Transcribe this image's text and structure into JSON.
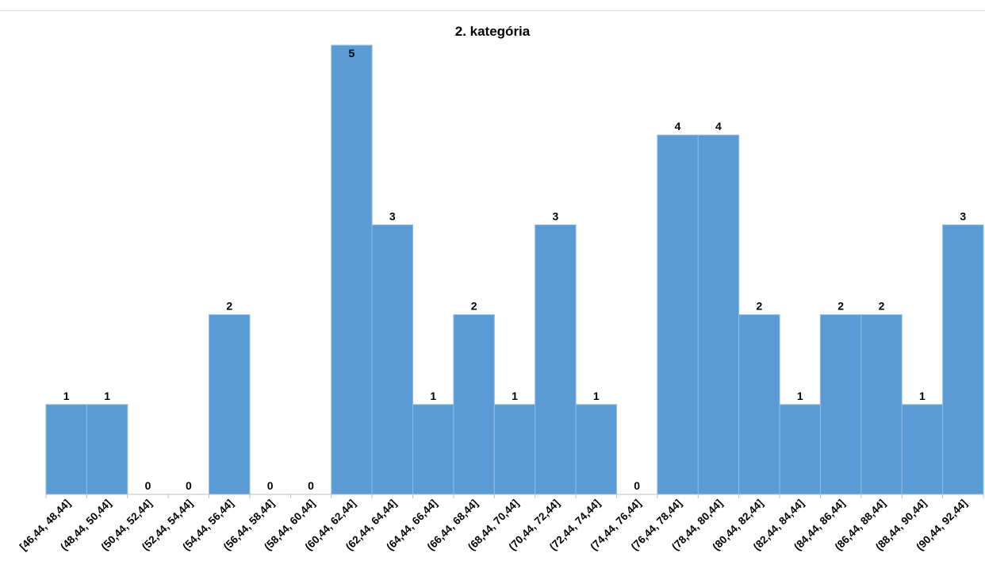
{
  "chart_data": {
    "type": "bar",
    "title": "2. kategória",
    "xlabel": "",
    "ylabel": "",
    "categories": [
      "[46,44, 48,44]",
      "(48,44, 50,44]",
      "(50,44, 52,44]",
      "(52,44, 54,44]",
      "(54,44, 56,44]",
      "(56,44, 58,44]",
      "(58,44, 60,44]",
      "(60,44, 62,44]",
      "(62,44, 64,44]",
      "(64,44, 66,44]",
      "(66,44, 68,44]",
      "(68,44, 70,44]",
      "(70,44, 72,44]",
      "(72,44, 74,44]",
      "(74,44, 76,44]",
      "(76,44, 78,44]",
      "(78,44, 80,44]",
      "(80,44, 82,44]",
      "(82,44, 84,44]",
      "(84,44, 86,44]",
      "(86,44, 88,44]",
      "(88,44, 90,44]",
      "(90,44, 92,44]"
    ],
    "values": [
      1,
      1,
      0,
      0,
      2,
      0,
      0,
      5,
      3,
      1,
      2,
      1,
      3,
      1,
      0,
      4,
      4,
      2,
      1,
      2,
      2,
      1,
      3
    ],
    "ylim": [
      0,
      5
    ],
    "grid": false,
    "legend": "none",
    "bar_color": "#5b9bd5",
    "bar_edge_color": "#8fbce6"
  }
}
